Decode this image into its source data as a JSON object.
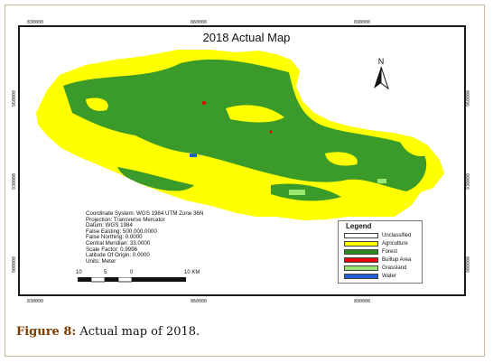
{
  "map": {
    "title": "2018 Actual Map",
    "north_label": "N",
    "coords_top": [
      "830000",
      "860000",
      "890000"
    ],
    "coords_bottom": [
      "830000",
      "860000",
      "890000"
    ],
    "coords_left": [
      "960000",
      "930000",
      "900000"
    ],
    "coords_right": [
      "960000",
      "930000",
      "900000"
    ],
    "info_lines": [
      "Coordinate System: WGS 1984 UTM Zone 36N",
      "Projection: Transverse Mercator",
      "Datum: WGS 1984",
      "False Easting: 500,000.0000",
      "False Northing: 0.0000",
      "Central Meridian: 33.0000",
      "Scale Factor: 0.9996",
      "Latitude Of Origin: 0.0000",
      "Units: Meter"
    ],
    "scale": {
      "l0": "10",
      "l1": "5",
      "l2": "0",
      "l3": "10 KM"
    },
    "legend": {
      "title": "Legend",
      "items": [
        {
          "label": "Unclassified",
          "color": "#ffffff"
        },
        {
          "label": "Agriculture",
          "color": "#ffff00"
        },
        {
          "label": "Forest",
          "color": "#2e8b22"
        },
        {
          "label": "Builtup Area",
          "color": "#e8000b"
        },
        {
          "label": "Grassland",
          "color": "#9be870"
        },
        {
          "label": "Water",
          "color": "#1f5fd6"
        }
      ]
    },
    "colors": {
      "agriculture": "#ffff00",
      "forest": "#3a9a2a",
      "builtup": "#e8000b",
      "grassland": "#9be870",
      "water": "#1f5fd6"
    }
  },
  "caption": {
    "label": "Figure 8:",
    "text": " Actual map of 2018."
  }
}
